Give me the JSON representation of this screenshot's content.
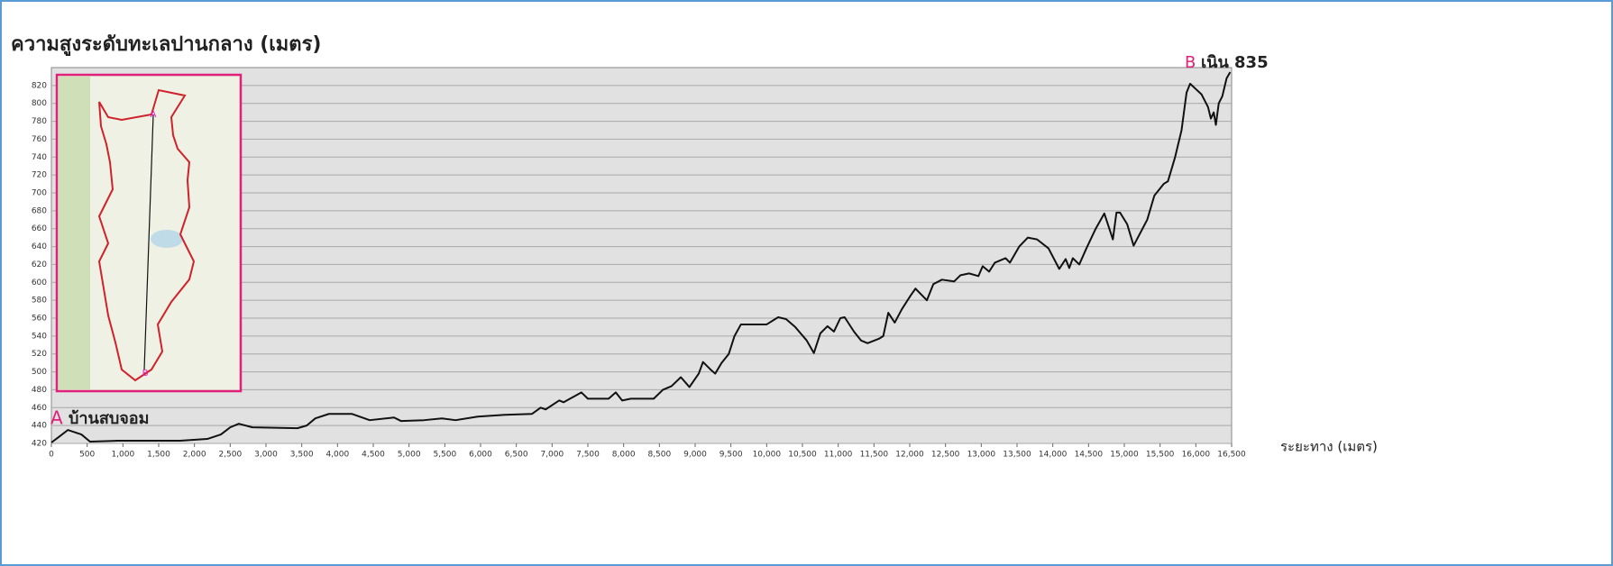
{
  "chart_data": {
    "type": "line",
    "title": "ความสูงระดับทะเลปานกลาง (เมตร)",
    "xlabel": "ระยะทาง (เมตร)",
    "annotations": [
      {
        "label": "A",
        "text": "บ้านสบจอม"
      },
      {
        "label": "B",
        "text": "เนิน 835"
      }
    ],
    "color": "#111111",
    "x": [
      0,
      100,
      230,
      420,
      540,
      920,
      1800,
      2180,
      2370,
      2500,
      2620,
      2810,
      3440,
      3570,
      3690,
      3880,
      4200,
      4450,
      4790,
      4890,
      5210,
      5460,
      5650,
      5960,
      6340,
      6720,
      6840,
      6910,
      7100,
      7160,
      7410,
      7500,
      7790,
      7890,
      7980,
      8100,
      8420,
      8550,
      8670,
      8800,
      8920,
      9050,
      9110,
      9210,
      9280,
      9370,
      9470,
      9550,
      9640,
      9720,
      10000,
      10160,
      10270,
      10400,
      10560,
      10660,
      10750,
      10850,
      10940,
      11030,
      11090,
      11220,
      11320,
      11410,
      11570,
      11630,
      11700,
      11790,
      11890,
      12010,
      12080,
      12240,
      12330,
      12450,
      12620,
      12710,
      12830,
      12960,
      13020,
      13110,
      13190,
      13340,
      13400,
      13530,
      13650,
      13780,
      13940,
      14090,
      14180,
      14230,
      14280,
      14370,
      14470,
      14600,
      14720,
      14840,
      14890,
      14940,
      15040,
      15130,
      15320,
      15420,
      15550,
      15610,
      15710,
      15800,
      15870,
      15920,
      16000,
      16080,
      16170,
      16210,
      16250,
      16280,
      16320,
      16370,
      16430,
      16480
    ],
    "values": [
      421,
      427,
      435,
      430,
      422,
      423,
      423,
      425,
      430,
      438,
      442,
      438,
      437,
      440,
      448,
      453,
      453,
      446,
      449,
      445,
      446,
      448,
      446,
      450,
      452,
      453,
      460,
      458,
      468,
      466,
      477,
      470,
      470,
      477,
      468,
      470,
      470,
      480,
      484,
      494,
      483,
      498,
      511,
      503,
      498,
      510,
      520,
      540,
      553,
      553,
      553,
      561,
      559,
      550,
      535,
      521,
      543,
      551,
      545,
      560,
      561,
      545,
      535,
      532,
      537,
      540,
      566,
      555,
      570,
      585,
      593,
      580,
      598,
      603,
      601,
      608,
      610,
      607,
      618,
      612,
      622,
      627,
      622,
      640,
      650,
      648,
      638,
      615,
      626,
      616,
      627,
      620,
      638,
      660,
      677,
      648,
      678,
      678,
      665,
      641,
      670,
      697,
      710,
      713,
      740,
      770,
      812,
      822,
      816,
      810,
      796,
      783,
      790,
      776,
      800,
      808,
      828,
      835
    ],
    "xlim": [
      0,
      16500
    ],
    "ylim": [
      420,
      840
    ],
    "xticks": [
      0,
      500,
      {
        "value": 1000,
        "label": "1,000"
      },
      {
        "value": 1500,
        "label": "1,500"
      },
      {
        "value": 2000,
        "label": "2,000"
      },
      {
        "value": 2500,
        "label": "2,500"
      },
      {
        "value": 3000,
        "label": "3,000"
      },
      {
        "value": 3500,
        "label": "3,500"
      },
      {
        "value": 4000,
        "label": "4,000"
      },
      {
        "value": 4500,
        "label": "4,500"
      },
      {
        "value": 5000,
        "label": "5,000"
      },
      {
        "value": 5500,
        "label": "5,500"
      },
      {
        "value": 6000,
        "label": "6,000"
      },
      {
        "value": 6500,
        "label": "6,500"
      },
      {
        "value": 7000,
        "label": "7,000"
      },
      {
        "value": 7500,
        "label": "7,500"
      },
      {
        "value": 8000,
        "label": "8,000"
      },
      {
        "value": 8500,
        "label": "8,500"
      },
      {
        "value": 9000,
        "label": "9,000"
      },
      {
        "value": 9500,
        "label": "9,500"
      },
      {
        "value": 10000,
        "label": "10,000"
      },
      {
        "value": 10500,
        "label": "10,500"
      },
      {
        "value": 11000,
        "label": "11,000"
      },
      {
        "value": 11500,
        "label": "11,500"
      },
      {
        "value": 12000,
        "label": "12,000"
      },
      {
        "value": 12500,
        "label": "12,500"
      },
      {
        "value": 13000,
        "label": "13,000"
      },
      {
        "value": 13500,
        "label": "13,500"
      },
      {
        "value": 14000,
        "label": "14,000"
      },
      {
        "value": 14500,
        "label": "14,500"
      },
      {
        "value": 15000,
        "label": "15,000"
      },
      {
        "value": 15500,
        "label": "15,500"
      },
      {
        "value": 16000,
        "label": "16,000"
      },
      {
        "value": 16500,
        "label": "16,500"
      }
    ],
    "yticks": [
      420,
      440,
      460,
      480,
      500,
      520,
      540,
      560,
      580,
      600,
      620,
      640,
      660,
      680,
      700,
      720,
      740,
      760,
      780,
      800,
      820
    ],
    "grid": true
  }
}
